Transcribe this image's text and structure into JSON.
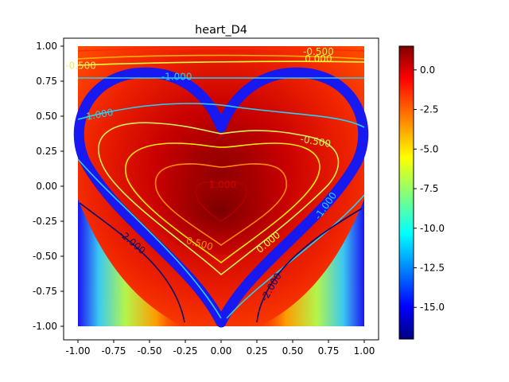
{
  "chart_data": {
    "type": "heatmap",
    "title": "heart_D4",
    "xlabel": "",
    "ylabel": "",
    "xlim": [
      -1.1,
      1.1
    ],
    "ylim": [
      -1.1,
      1.1
    ],
    "x_ticks": [
      "-1.00",
      "-0.75",
      "-0.50",
      "-0.25",
      "0.00",
      "0.25",
      "0.50",
      "0.75",
      "1.00"
    ],
    "y_ticks": [
      "1.00",
      "0.75",
      "0.50",
      "0.25",
      "0.00",
      "-0.25",
      "-0.50",
      "-0.75",
      "-1.00"
    ],
    "grid": false,
    "colormap": "jet",
    "colorbar": {
      "range": [
        -17,
        1.5
      ],
      "ticks": [
        "0.0",
        "-2.5",
        "-5.0",
        "-7.5",
        "-10.0",
        "-12.5",
        "-15.0"
      ]
    },
    "contour_levels": [
      -2.0,
      -1.0,
      -0.5,
      0.0,
      0.5,
      1.0
    ],
    "contour_labels": [
      {
        "text": "-0.500",
        "color": "#f4e46a"
      },
      {
        "text": "0.000",
        "color": "#ffff38"
      },
      {
        "text": "-0.500",
        "color": "#d2f05c"
      },
      {
        "text": "-1.000",
        "color": "#2ad0f0"
      },
      {
        "text": "-1.000",
        "color": "#2ad0f0"
      },
      {
        "text": "-0.500",
        "color": "#d2f05c"
      },
      {
        "text": "-1.000",
        "color": "#2ad0f0"
      },
      {
        "text": "1.000",
        "color": "#d40000"
      },
      {
        "text": "0.500",
        "color": "#ff8c00"
      },
      {
        "text": "0.000",
        "color": "#ffff38"
      },
      {
        "text": "-2.000",
        "color": "#0a0a70"
      },
      {
        "text": "-2.000",
        "color": "#0a0a70"
      }
    ]
  }
}
